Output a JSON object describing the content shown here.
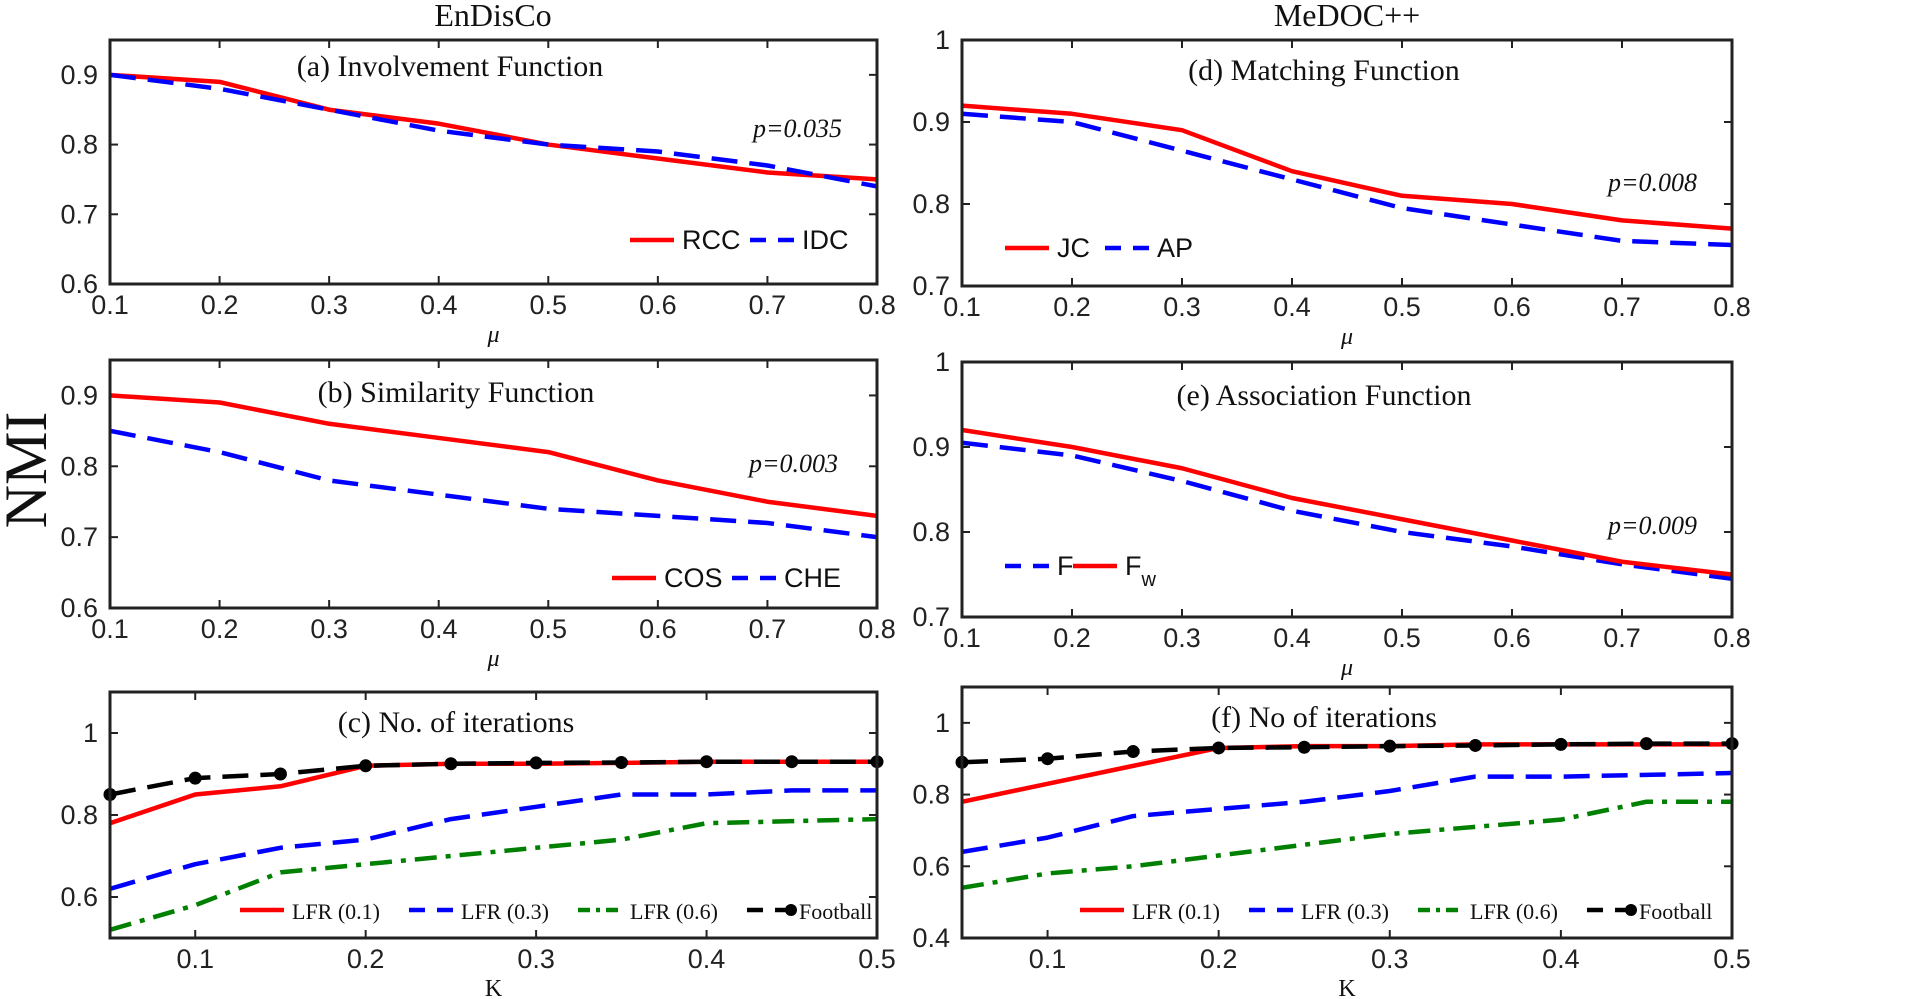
{
  "figure": {
    "y_label": "NMI",
    "left_column_title": "EnDisCo",
    "right_column_title": "MeDOC++"
  },
  "chart_data": [
    {
      "id": "a",
      "type": "line",
      "title": "(a) Involvement Function",
      "xlabel": "μ",
      "ylabel": "NMI",
      "annotation": "p=0.035",
      "x": [
        0.1,
        0.2,
        0.3,
        0.4,
        0.5,
        0.6,
        0.7,
        0.8
      ],
      "xlim": [
        0.1,
        0.8
      ],
      "ylim": [
        0.6,
        0.95
      ],
      "xticks": [
        "0.1",
        "0.2",
        "0.3",
        "0.4",
        "0.5",
        "0.6",
        "0.7",
        "0.8"
      ],
      "yticks": [
        "0.6",
        "0.7",
        "0.8",
        "0.9"
      ],
      "legend_position": "bottom-right",
      "series": [
        {
          "name": "RCC",
          "color": "#ff0000",
          "style": "solid",
          "values": [
            0.9,
            0.89,
            0.85,
            0.83,
            0.8,
            0.78,
            0.76,
            0.75
          ]
        },
        {
          "name": "IDC",
          "color": "#0000ff",
          "style": "dash",
          "values": [
            0.9,
            0.88,
            0.85,
            0.82,
            0.8,
            0.79,
            0.77,
            0.74
          ]
        }
      ]
    },
    {
      "id": "b",
      "type": "line",
      "title": "(b) Similarity Function",
      "xlabel": "μ",
      "ylabel": "NMI",
      "annotation": "p=0.003",
      "x": [
        0.1,
        0.2,
        0.3,
        0.4,
        0.5,
        0.6,
        0.7,
        0.8
      ],
      "xlim": [
        0.1,
        0.8
      ],
      "ylim": [
        0.6,
        0.95
      ],
      "xticks": [
        "0.1",
        "0.2",
        "0.3",
        "0.4",
        "0.5",
        "0.6",
        "0.7",
        "0.8"
      ],
      "yticks": [
        "0.6",
        "0.7",
        "0.8",
        "0.9"
      ],
      "legend_position": "bottom-right",
      "series": [
        {
          "name": "COS",
          "color": "#ff0000",
          "style": "solid",
          "values": [
            0.9,
            0.89,
            0.86,
            0.84,
            0.82,
            0.78,
            0.75,
            0.73
          ]
        },
        {
          "name": "CHE",
          "color": "#0000ff",
          "style": "dash",
          "values": [
            0.85,
            0.82,
            0.78,
            0.76,
            0.74,
            0.73,
            0.72,
            0.7
          ]
        }
      ]
    },
    {
      "id": "c",
      "type": "line",
      "title": "(c) No. of iterations",
      "xlabel": "K",
      "ylabel": "NMI",
      "x": [
        0.05,
        0.1,
        0.15,
        0.2,
        0.25,
        0.3,
        0.35,
        0.4,
        0.45,
        0.5
      ],
      "xlim": [
        0.05,
        0.5
      ],
      "ylim": [
        0.5,
        1.1
      ],
      "xticks": [
        "0.1",
        "0.2",
        "0.3",
        "0.4",
        "0.5"
      ],
      "yticks": [
        "0.6",
        "0.8",
        "1"
      ],
      "legend_position": "bottom",
      "series": [
        {
          "name": "LFR (0.1)",
          "color": "#ff0000",
          "style": "solid",
          "values": [
            0.78,
            0.85,
            0.87,
            0.92,
            0.925,
            0.925,
            0.927,
            0.93,
            0.93,
            0.93
          ]
        },
        {
          "name": "LFR (0.3)",
          "color": "#0000ff",
          "style": "dash",
          "values": [
            0.62,
            0.68,
            0.72,
            0.74,
            0.79,
            0.82,
            0.85,
            0.85,
            0.86,
            0.86
          ]
        },
        {
          "name": "LFR (0.6)",
          "color": "#008000",
          "style": "dashdot",
          "values": [
            0.52,
            0.58,
            0.66,
            0.68,
            0.7,
            0.72,
            0.74,
            0.78,
            0.785,
            0.79
          ]
        },
        {
          "name": "Football",
          "color": "#000000",
          "style": "dash",
          "marker": "circle",
          "values": [
            0.85,
            0.89,
            0.9,
            0.92,
            0.925,
            0.927,
            0.928,
            0.93,
            0.93,
            0.93
          ]
        }
      ]
    },
    {
      "id": "d",
      "type": "line",
      "title": "(d) Matching Function",
      "xlabel": "μ",
      "ylabel": "NMI",
      "annotation": "p=0.008",
      "x": [
        0.1,
        0.2,
        0.3,
        0.4,
        0.5,
        0.6,
        0.7,
        0.8
      ],
      "xlim": [
        0.1,
        0.8
      ],
      "ylim": [
        0.7,
        1.0
      ],
      "xticks": [
        "0.1",
        "0.2",
        "0.3",
        "0.4",
        "0.5",
        "0.6",
        "0.7",
        "0.8"
      ],
      "yticks": [
        "0.7",
        "0.8",
        "0.9",
        "1"
      ],
      "legend_position": "bottom-left",
      "series": [
        {
          "name": "JC",
          "color": "#ff0000",
          "style": "solid",
          "values": [
            0.92,
            0.91,
            0.89,
            0.84,
            0.81,
            0.8,
            0.78,
            0.77
          ]
        },
        {
          "name": "AP",
          "color": "#0000ff",
          "style": "dash",
          "values": [
            0.91,
            0.9,
            0.865,
            0.83,
            0.795,
            0.775,
            0.755,
            0.75
          ]
        }
      ]
    },
    {
      "id": "e",
      "type": "line",
      "title": "(e) Association Function",
      "xlabel": "μ",
      "ylabel": "NMI",
      "annotation": "p=0.009",
      "x": [
        0.1,
        0.2,
        0.3,
        0.4,
        0.5,
        0.6,
        0.7,
        0.8
      ],
      "xlim": [
        0.1,
        0.8
      ],
      "ylim": [
        0.7,
        1.0
      ],
      "xticks": [
        "0.1",
        "0.2",
        "0.3",
        "0.4",
        "0.5",
        "0.6",
        "0.7",
        "0.8"
      ],
      "yticks": [
        "0.7",
        "0.8",
        "0.9",
        "1"
      ],
      "legend_position": "bottom-left",
      "series": [
        {
          "name": "F",
          "color": "#0000ff",
          "style": "dash",
          "values": [
            0.905,
            0.89,
            0.86,
            0.825,
            0.8,
            0.783,
            0.762,
            0.745
          ]
        },
        {
          "name": "F",
          "subscript": "w",
          "color": "#ff0000",
          "style": "solid",
          "values": [
            0.92,
            0.9,
            0.875,
            0.84,
            0.815,
            0.79,
            0.765,
            0.75
          ]
        }
      ]
    },
    {
      "id": "f",
      "type": "line",
      "title": "(f) No of iterations",
      "xlabel": "K",
      "ylabel": "NMI",
      "x": [
        0.05,
        0.1,
        0.15,
        0.2,
        0.25,
        0.3,
        0.35,
        0.4,
        0.45,
        0.5
      ],
      "xlim": [
        0.05,
        0.5
      ],
      "ylim": [
        0.4,
        1.1
      ],
      "xticks": [
        "0.1",
        "0.2",
        "0.3",
        "0.4",
        "0.5"
      ],
      "yticks": [
        "0.4",
        "0.6",
        "0.8",
        "1"
      ],
      "legend_position": "bottom",
      "series": [
        {
          "name": "LFR (0.1)",
          "color": "#ff0000",
          "style": "solid",
          "values": [
            0.78,
            0.83,
            0.88,
            0.93,
            0.935,
            0.935,
            0.94,
            0.94,
            0.94,
            0.94
          ]
        },
        {
          "name": "LFR (0.3)",
          "color": "#0000ff",
          "style": "dash",
          "values": [
            0.64,
            0.68,
            0.74,
            0.76,
            0.78,
            0.81,
            0.85,
            0.85,
            0.855,
            0.86
          ]
        },
        {
          "name": "LFR (0.6)",
          "color": "#008000",
          "style": "dashdot",
          "values": [
            0.54,
            0.58,
            0.6,
            0.63,
            0.66,
            0.69,
            0.71,
            0.73,
            0.78,
            0.78
          ]
        },
        {
          "name": "Football",
          "color": "#000000",
          "style": "dash",
          "marker": "circle",
          "values": [
            0.89,
            0.9,
            0.92,
            0.93,
            0.932,
            0.935,
            0.937,
            0.94,
            0.942,
            0.942
          ]
        }
      ]
    }
  ]
}
